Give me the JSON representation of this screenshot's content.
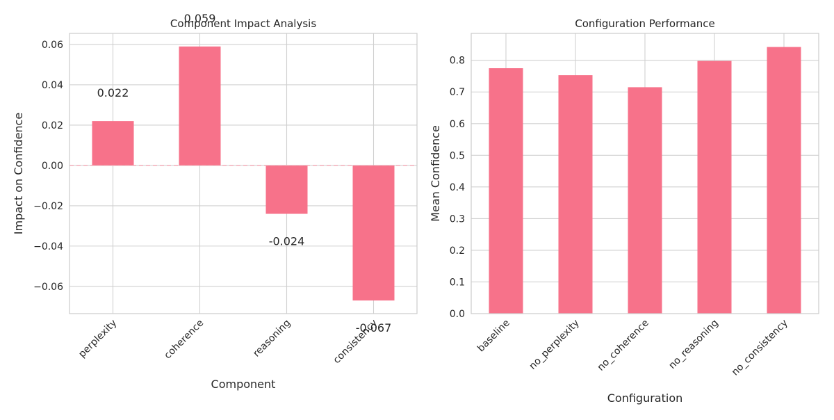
{
  "chart_data": [
    {
      "type": "bar",
      "title": "Component Impact Analysis",
      "xlabel": "Component",
      "ylabel": "Impact on Confidence",
      "categories": [
        "perplexity",
        "coherence",
        "reasoning",
        "consistency"
      ],
      "values": [
        0.022,
        0.059,
        -0.024,
        -0.067
      ],
      "data_labels": [
        "0.022",
        "0.059",
        "-0.024",
        "-0.067"
      ],
      "ylim": [
        -0.0735,
        0.0655
      ],
      "yticks": [
        -0.06,
        -0.04,
        -0.02,
        0.0,
        0.02,
        0.04,
        0.06
      ],
      "ytick_labels": [
        "−0.06",
        "−0.04",
        "−0.02",
        "0.00",
        "0.02",
        "0.04",
        "0.06"
      ],
      "reference_line": 0,
      "grid": true,
      "bar_color": "#f7728a",
      "reference_line_color": "#f2a7b4"
    },
    {
      "type": "bar",
      "title": "Configuration Performance",
      "xlabel": "Configuration",
      "ylabel": "Mean Confidence",
      "categories": [
        "baseline",
        "no_perplexity",
        "no_coherence",
        "no_reasoning",
        "no_consistency"
      ],
      "values": [
        0.775,
        0.753,
        0.715,
        0.798,
        0.842
      ],
      "ylim": [
        0,
        0.885
      ],
      "yticks": [
        0.0,
        0.1,
        0.2,
        0.3,
        0.4,
        0.5,
        0.6,
        0.7,
        0.8
      ],
      "ytick_labels": [
        "0.0",
        "0.1",
        "0.2",
        "0.3",
        "0.4",
        "0.5",
        "0.6",
        "0.7",
        "0.8"
      ],
      "grid": true,
      "bar_color": "#f7728a"
    }
  ]
}
